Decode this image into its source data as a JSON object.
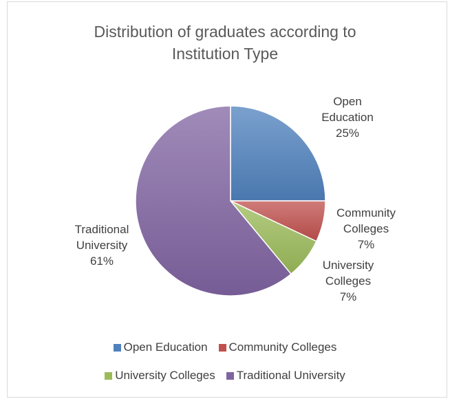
{
  "chart_data": {
    "type": "pie",
    "title": "Distribution of graduates according to Institution Type",
    "title_lines": [
      "Distribution of graduates according to",
      "Institution Type"
    ],
    "legend_placement": "bottom",
    "slices": [
      {
        "name": "Open Education",
        "label_lines": [
          "Open",
          "Education"
        ],
        "value": 25,
        "value_label": "25%",
        "color": "#4f81bd"
      },
      {
        "name": "Community Colleges",
        "label_lines": [
          "Community",
          "Colleges"
        ],
        "value": 7,
        "value_label": "7%",
        "color": "#c0504d"
      },
      {
        "name": "University Colleges",
        "label_lines": [
          "University",
          "Colleges"
        ],
        "value": 7,
        "value_label": "7%",
        "color": "#9bbb59"
      },
      {
        "name": "Traditional University",
        "label_lines": [
          "Traditional",
          "University"
        ],
        "value": 61,
        "value_label": "61%",
        "color": "#8064a2"
      }
    ],
    "legend_rows": [
      [
        "Open Education",
        "Community Colleges"
      ],
      [
        "University Colleges",
        "Traditional University"
      ]
    ]
  }
}
